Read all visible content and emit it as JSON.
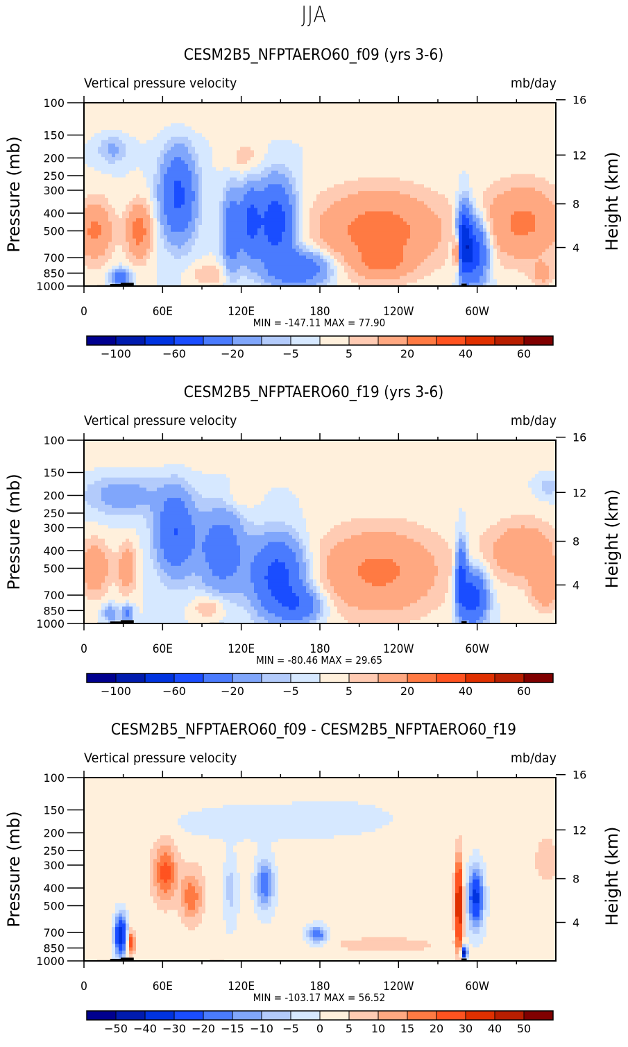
{
  "figure_title": "JJA",
  "chart_data": [
    {
      "type": "heatmap",
      "title": "CESM2B5_NFPTAERO60_f09 (yrs 3-6)",
      "left_string": "Vertical pressure velocity",
      "right_string": "mb/day",
      "xlabel": "",
      "ylabel": "Pressure (mb)",
      "ylabel_right": "Height (km)",
      "x_ticks": [
        "0",
        "60E",
        "120E",
        "180",
        "120W",
        "60W"
      ],
      "x_range": [
        0,
        360
      ],
      "y_ticks": [
        "100",
        "150",
        "200",
        "250",
        "300",
        "400",
        "500",
        "700",
        "850",
        "1000"
      ],
      "y_range": [
        1000,
        100
      ],
      "y_right_ticks": [
        "16",
        "12",
        "8",
        "4"
      ],
      "stats": "MIN = -147.11   MAX =  77.90",
      "min": -147.11,
      "max": 77.9,
      "colorbar": {
        "levels": [
          -120,
          -100,
          -80,
          -60,
          -40,
          -20,
          -10,
          -5,
          0,
          5,
          10,
          20,
          30,
          40,
          50,
          60
        ],
        "labels": [
          "-100",
          "-60",
          "-20",
          "-5",
          "5",
          "20",
          "40",
          "60"
        ],
        "colors": [
          "#00008f",
          "#001bae",
          "#0033e0",
          "#1a4dff",
          "#4a7bfe",
          "#80a6fb",
          "#b3cbfb",
          "#d6e8ff",
          "#fff0dc",
          "#ffcbb3",
          "#ffa881",
          "#ff7a43",
          "#ff5320",
          "#e03000",
          "#b81e00",
          "#800000"
        ]
      }
    },
    {
      "type": "heatmap",
      "title": "CESM2B5_NFPTAERO60_f19 (yrs 3-6)",
      "left_string": "Vertical pressure velocity",
      "right_string": "mb/day",
      "xlabel": "",
      "ylabel": "Pressure (mb)",
      "ylabel_right": "Height (km)",
      "x_ticks": [
        "0",
        "60E",
        "120E",
        "180",
        "120W",
        "60W"
      ],
      "x_range": [
        0,
        360
      ],
      "y_ticks": [
        "100",
        "150",
        "200",
        "250",
        "300",
        "400",
        "500",
        "700",
        "850",
        "1000"
      ],
      "y_range": [
        1000,
        100
      ],
      "y_right_ticks": [
        "16",
        "12",
        "8",
        "4"
      ],
      "stats": "MIN = -80.46   MAX =  29.65",
      "min": -80.46,
      "max": 29.65,
      "colorbar": {
        "levels": [
          -120,
          -100,
          -80,
          -60,
          -40,
          -20,
          -10,
          -5,
          0,
          5,
          10,
          20,
          30,
          40,
          50,
          60
        ],
        "labels": [
          "-100",
          "-60",
          "-20",
          "-5",
          "5",
          "20",
          "40",
          "60"
        ],
        "colors": [
          "#00008f",
          "#001bae",
          "#0033e0",
          "#1a4dff",
          "#4a7bfe",
          "#80a6fb",
          "#b3cbfb",
          "#d6e8ff",
          "#fff0dc",
          "#ffcbb3",
          "#ffa881",
          "#ff7a43",
          "#ff5320",
          "#e03000",
          "#b81e00",
          "#800000"
        ]
      }
    },
    {
      "type": "heatmap",
      "title": "CESM2B5_NFPTAERO60_f09 - CESM2B5_NFPTAERO60_f19",
      "left_string": "Vertical pressure velocity",
      "right_string": "mb/day",
      "xlabel": "",
      "ylabel": "Pressure (mb)",
      "ylabel_right": "Height (km)",
      "x_ticks": [
        "0",
        "60E",
        "120E",
        "180",
        "120W",
        "60W"
      ],
      "x_range": [
        0,
        360
      ],
      "y_ticks": [
        "100",
        "150",
        "200",
        "250",
        "300",
        "400",
        "500",
        "700",
        "850",
        "1000"
      ],
      "y_range": [
        1000,
        100
      ],
      "y_right_ticks": [
        "16",
        "12",
        "8",
        "4"
      ],
      "stats": "MIN = -103.17   MAX =  56.52",
      "min": -103.17,
      "max": 56.52,
      "colorbar": {
        "levels": [
          -50,
          -40,
          -30,
          -20,
          -15,
          -10,
          -5,
          0,
          5,
          10,
          15,
          20,
          30,
          40,
          50
        ],
        "labels": [
          "-50",
          "-40",
          "-30",
          "-20",
          "-15",
          "-10",
          "-5",
          "0",
          "5",
          "10",
          "15",
          "20",
          "30",
          "40",
          "50"
        ],
        "colors": [
          "#00008f",
          "#001bae",
          "#0033e0",
          "#1a4dff",
          "#4a7bfe",
          "#80a6fb",
          "#b3cbfb",
          "#d6e8ff",
          "#fff0dc",
          "#ffcbb3",
          "#ffa881",
          "#ff7a43",
          "#ff5320",
          "#e03000",
          "#b81e00",
          "#800000"
        ]
      }
    }
  ]
}
